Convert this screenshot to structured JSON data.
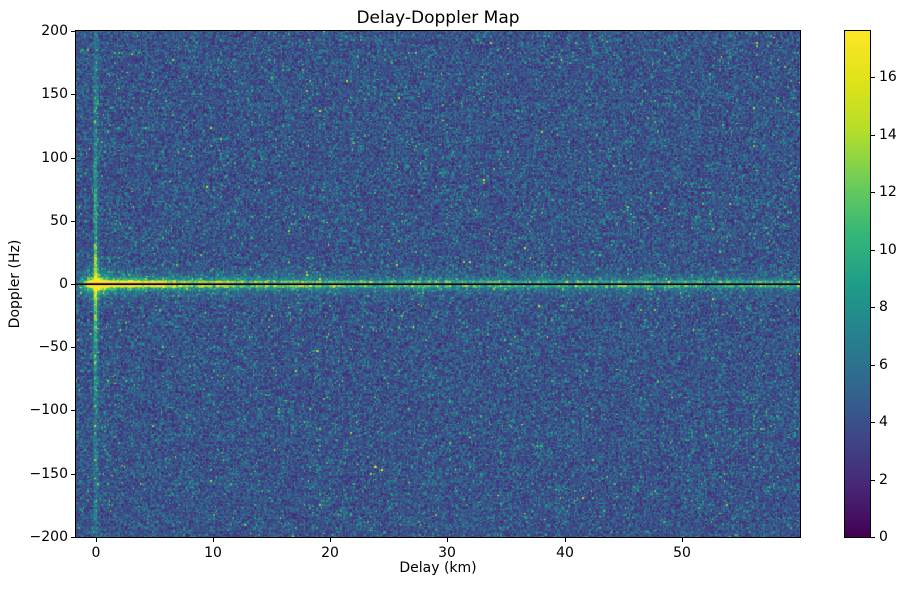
{
  "window": {
    "background": "#ffffff"
  },
  "chart_data": {
    "type": "heatmap",
    "title": "Delay-Doppler Map",
    "xlabel": "Delay (km)",
    "ylabel": "Doppler (Hz)",
    "x_range_km": [
      -1.7,
      60.1
    ],
    "y_range_hz": [
      -200.2,
      200.2
    ],
    "x_ticks": [
      {
        "value": 0,
        "label": "0"
      },
      {
        "value": 10,
        "label": "10"
      },
      {
        "value": 20,
        "label": "20"
      },
      {
        "value": 30,
        "label": "30"
      },
      {
        "value": 40,
        "label": "40"
      },
      {
        "value": 50,
        "label": "50"
      }
    ],
    "y_ticks": [
      {
        "value": 200,
        "label": "200"
      },
      {
        "value": 150,
        "label": "150"
      },
      {
        "value": 100,
        "label": "100"
      },
      {
        "value": 50,
        "label": "50"
      },
      {
        "value": 0,
        "label": "0"
      },
      {
        "value": -50,
        "label": "−50"
      },
      {
        "value": -100,
        "label": "−100"
      },
      {
        "value": -150,
        "label": "−150"
      },
      {
        "value": -200,
        "label": "−200"
      }
    ],
    "colorbar": {
      "vmin": 0,
      "vmax": 17.6,
      "ticks": [
        {
          "value": 0,
          "label": "0"
        },
        {
          "value": 2,
          "label": "2"
        },
        {
          "value": 4,
          "label": "4"
        },
        {
          "value": 6,
          "label": "6"
        },
        {
          "value": 8,
          "label": "8"
        },
        {
          "value": 10,
          "label": "10"
        },
        {
          "value": 12,
          "label": "12"
        },
        {
          "value": 14,
          "label": "14"
        },
        {
          "value": 16,
          "label": "16"
        }
      ],
      "position": "right"
    },
    "colormap": {
      "name": "viridis",
      "stops": [
        [
          0.0,
          "#440154"
        ],
        [
          0.1,
          "#482878"
        ],
        [
          0.2,
          "#3e4989"
        ],
        [
          0.3,
          "#31688e"
        ],
        [
          0.4,
          "#26828e"
        ],
        [
          0.5,
          "#1f9e89"
        ],
        [
          0.6,
          "#35b779"
        ],
        [
          0.7,
          "#6dcd59"
        ],
        [
          0.8,
          "#b4de2c"
        ],
        [
          0.9,
          "#dfe318"
        ],
        [
          1.0,
          "#fde725"
        ]
      ]
    },
    "grid": false,
    "legend": "colorbar-right",
    "noise": {
      "distribution": "speckle-gamma",
      "shape": 3,
      "offset": 1.2,
      "scale": 1.05,
      "mean_level": 4.4,
      "seed": 42
    },
    "features": {
      "specular_peak": {
        "delay_km": 0,
        "doppler_hz": 0,
        "peak_value": 17.6
      },
      "zero_doppler_band": {
        "doppler_hz": 0,
        "peak_value": 17.5,
        "floor_value": 6.0,
        "decay_scale_km": 9,
        "core_halfwidth_hz": 2.6,
        "glow_halfwidth_hz": 8
      },
      "zero_doppler_dark_line": {
        "doppler_hz": 0,
        "value": 1.1
      },
      "zero_delay_streak": {
        "delay_km": 0,
        "peak_value": 14,
        "decay_scale_hz": 55
      }
    }
  }
}
